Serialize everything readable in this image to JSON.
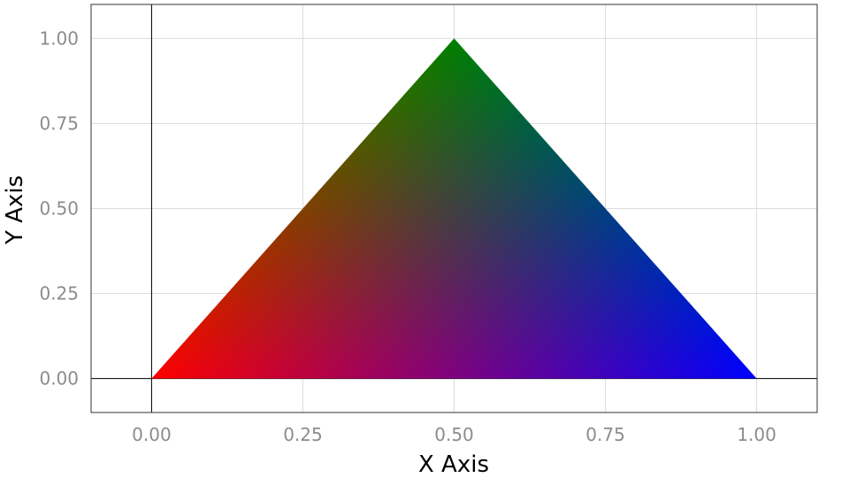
{
  "chart_data": {
    "type": "area",
    "title": "",
    "xlabel": "X Axis",
    "ylabel": "Y Axis",
    "xlim": [
      -0.1,
      1.1
    ],
    "ylim": [
      -0.1,
      1.1
    ],
    "xticks": [
      "0.00",
      "0.25",
      "0.50",
      "0.75",
      "1.00"
    ],
    "yticks": [
      "0.00",
      "0.25",
      "0.50",
      "0.75",
      "1.00"
    ],
    "grid": true,
    "zero_lines": true,
    "triangle": {
      "vertices": [
        {
          "x": 0.0,
          "y": 0.0,
          "color": "#ff0000"
        },
        {
          "x": 0.5,
          "y": 1.0,
          "color": "#008000"
        },
        {
          "x": 1.0,
          "y": 0.0,
          "color": "#0000ff"
        }
      ]
    }
  }
}
